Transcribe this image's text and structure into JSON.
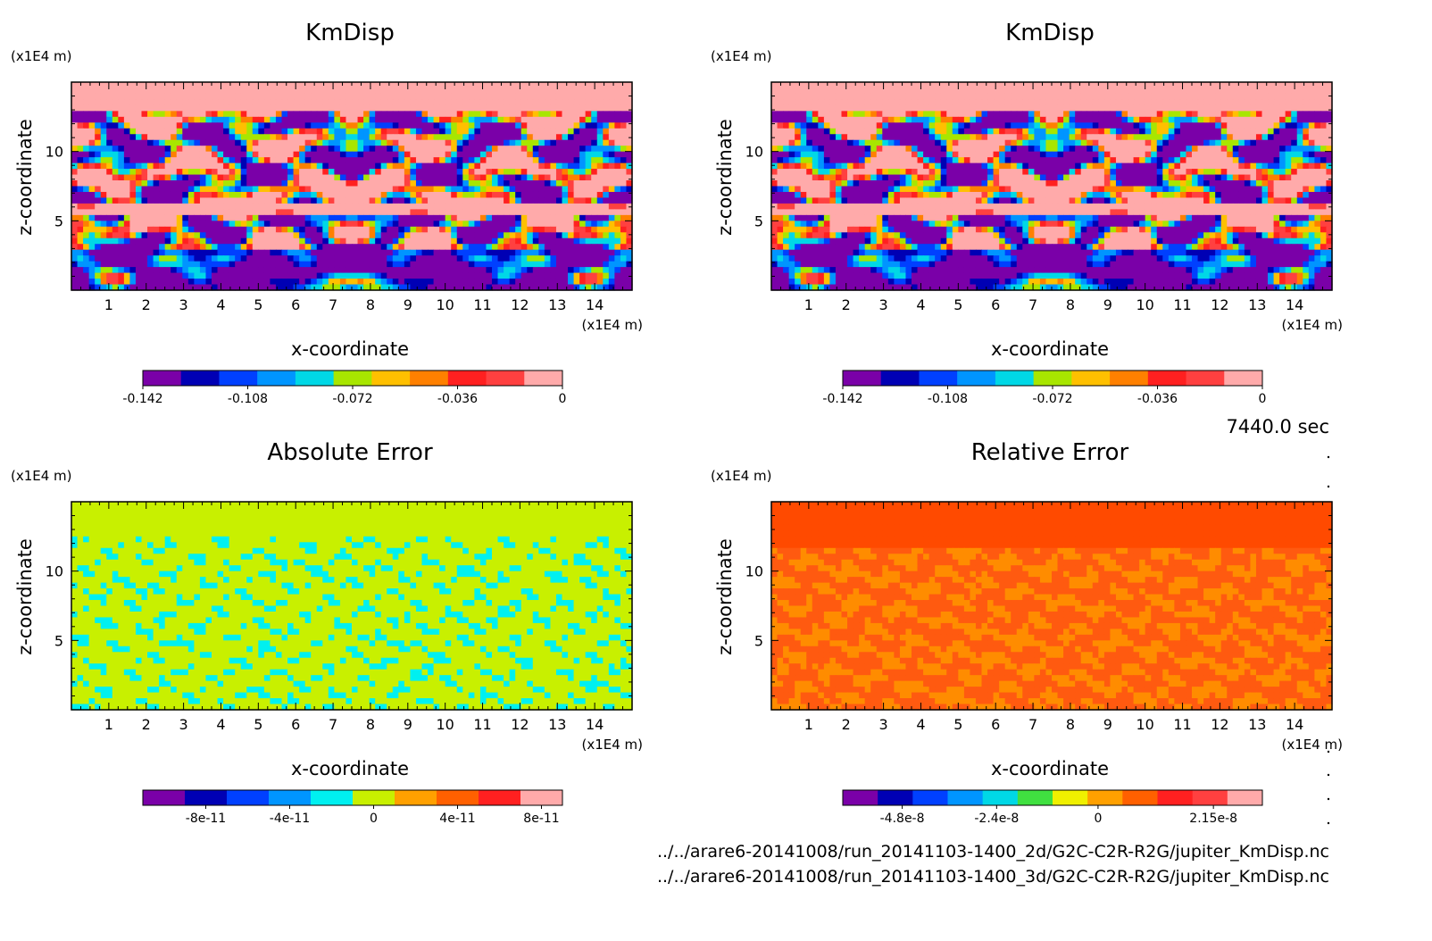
{
  "time_label": "7440.0 sec",
  "footer": {
    "line1": "../../arare6-20141008/run_20141103-1400_2d/G2C-C2R-R2G/jupiter_KmDisp.nc",
    "line2": "../../arare6-20141008/run_20141103-1400_3d/G2C-C2R-R2G/jupiter_KmDisp.nc"
  },
  "chart_data": [
    {
      "type": "heatmap",
      "title": "KmDisp",
      "xlabel": "x-coordinate",
      "ylabel": "z-coordinate",
      "x_unit": "(x1E4 m)",
      "y_unit": "(x1E4 m)",
      "xlim": [
        0,
        15
      ],
      "ylim": [
        0,
        15
      ],
      "x_ticks": [
        "1",
        "2",
        "3",
        "4",
        "5",
        "6",
        "7",
        "8",
        "9",
        "10",
        "11",
        "12",
        "13",
        "14"
      ],
      "y_ticks": [
        "5",
        "10"
      ],
      "pattern": "kmdisp",
      "colorbar": {
        "colors": [
          "#7a00a8",
          "#0000b4",
          "#0040ff",
          "#0095ff",
          "#00d8e6",
          "#a8e600",
          "#ffc000",
          "#ff8000",
          "#ff2020",
          "#ff4040",
          "#ffaaaa"
        ],
        "labels": [
          "-0.142",
          "-0.108",
          "-0.072",
          "-0.036",
          "0"
        ],
        "label_positions": [
          0,
          3,
          6,
          9,
          12
        ]
      }
    },
    {
      "type": "heatmap",
      "title": "KmDisp",
      "xlabel": "x-coordinate",
      "ylabel": "z-coordinate",
      "x_unit": "(x1E4 m)",
      "y_unit": "(x1E4 m)",
      "xlim": [
        0,
        15
      ],
      "ylim": [
        0,
        15
      ],
      "x_ticks": [
        "1",
        "2",
        "3",
        "4",
        "5",
        "6",
        "7",
        "8",
        "9",
        "10",
        "11",
        "12",
        "13",
        "14"
      ],
      "y_ticks": [
        "5",
        "10"
      ],
      "pattern": "kmdisp",
      "colorbar": {
        "colors": [
          "#7a00a8",
          "#0000b4",
          "#0040ff",
          "#0095ff",
          "#00d8e6",
          "#a8e600",
          "#ffc000",
          "#ff8000",
          "#ff2020",
          "#ff4040",
          "#ffaaaa"
        ],
        "labels": [
          "-0.142",
          "-0.108",
          "-0.072",
          "-0.036",
          "0"
        ],
        "label_positions": [
          0,
          3,
          6,
          9,
          12
        ]
      }
    },
    {
      "type": "heatmap",
      "title": "Absolute Error",
      "xlabel": "x-coordinate",
      "ylabel": "z-coordinate",
      "x_unit": "(x1E4 m)",
      "y_unit": "(x1E4 m)",
      "xlim": [
        0,
        15
      ],
      "ylim": [
        0,
        15
      ],
      "x_ticks": [
        "1",
        "2",
        "3",
        "4",
        "5",
        "6",
        "7",
        "8",
        "9",
        "10",
        "11",
        "12",
        "13",
        "14"
      ],
      "y_ticks": [
        "5",
        "10"
      ],
      "pattern": "abs",
      "colorbar": {
        "colors": [
          "#7a00a8",
          "#0000b4",
          "#0040ff",
          "#0095ff",
          "#00f0f0",
          "#c8f000",
          "#ffa000",
          "#ff6000",
          "#ff2020",
          "#ffaaaa"
        ],
        "labels": [
          "-8e-11",
          "-4e-11",
          "0",
          "4e-11",
          "8e-11"
        ],
        "label_positions": [
          1,
          3,
          5,
          7,
          9
        ]
      }
    },
    {
      "type": "heatmap",
      "title": "Relative Error",
      "xlabel": "x-coordinate",
      "ylabel": "z-coordinate",
      "x_unit": "(x1E4 m)",
      "y_unit": "(x1E4 m)",
      "xlim": [
        0,
        15
      ],
      "ylim": [
        0,
        15
      ],
      "x_ticks": [
        "1",
        "2",
        "3",
        "4",
        "5",
        "6",
        "7",
        "8",
        "9",
        "10",
        "11",
        "12",
        "13",
        "14"
      ],
      "y_ticks": [
        "5",
        "10"
      ],
      "pattern": "rel",
      "colorbar": {
        "colors": [
          "#7a00a8",
          "#0000b4",
          "#0040ff",
          "#0095ff",
          "#00d8e6",
          "#40e040",
          "#f0f000",
          "#ffa000",
          "#ff6000",
          "#ff2020",
          "#ff4040",
          "#ffaaaa"
        ],
        "labels": [
          "-4.8e-8",
          "-2.4e-8",
          "0",
          "2.15e-8"
        ],
        "label_positions": [
          1.7,
          4.4,
          7.3,
          10.6
        ]
      }
    }
  ]
}
